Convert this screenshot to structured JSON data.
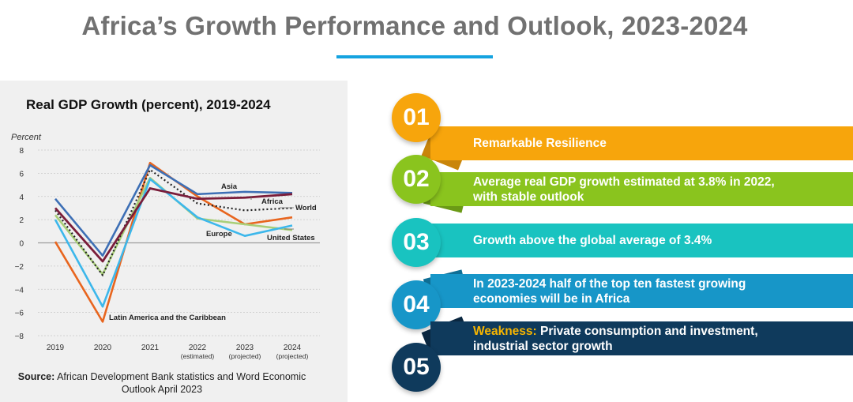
{
  "title": "Africa’s Growth Performance and Outlook, 2023-2024",
  "source": {
    "label": "Source:",
    "line1": " African Development Bank statistics and Word Economic",
    "line2": "Outlook April 2023"
  },
  "colors": {
    "accent": "#15a3e0",
    "asia": "#3d6fb5",
    "africa": "#7a1d3a",
    "world": "#222222",
    "europe": "#a9cf79",
    "united_states": "#3cb7eb",
    "latam": "#e8651e"
  },
  "chart_data": {
    "type": "line",
    "title": "Real GDP Growth (percent), 2019-2024",
    "ylabel": "Percent",
    "xlabel": "",
    "ylim": [
      -8,
      8
    ],
    "yticks": [
      "8",
      "6",
      "4",
      "2",
      "0",
      "−2",
      "−4",
      "−6",
      "−8"
    ],
    "x": [
      {
        "main": "2019",
        "sub": ""
      },
      {
        "main": "2020",
        "sub": ""
      },
      {
        "main": "2021",
        "sub": ""
      },
      {
        "main": "2022",
        "sub": "(estimated)"
      },
      {
        "main": "2023",
        "sub": "(projected)"
      },
      {
        "main": "2024",
        "sub": "(projected)"
      }
    ],
    "series": [
      {
        "name": "Latin America and the Caribbean",
        "values": [
          0.1,
          -6.8,
          6.9,
          4.0,
          1.6,
          2.2
        ]
      },
      {
        "name": "Europe",
        "values": [
          2.4,
          -2.7,
          5.6,
          2.1,
          1.6,
          1.1
        ]
      },
      {
        "name": "United States",
        "values": [
          2.0,
          -5.5,
          5.5,
          2.2,
          0.6,
          1.5
        ]
      },
      {
        "name": "World",
        "values": [
          2.8,
          -2.8,
          6.3,
          3.4,
          2.8,
          3.0
        ]
      },
      {
        "name": "Asia",
        "values": [
          3.8,
          -1.1,
          6.7,
          4.2,
          4.4,
          4.3
        ]
      },
      {
        "name": "Africa",
        "values": [
          3.0,
          -1.6,
          4.7,
          3.8,
          3.9,
          4.2
        ]
      }
    ],
    "series_labels": {
      "asia": "Asia",
      "africa": "Africa",
      "world": "World",
      "europe": "Europe",
      "united_states": "United States",
      "latam": "Latin America and the Caribbean"
    }
  },
  "items": [
    {
      "number": "01",
      "text": "Remarkable Resilience",
      "text2": "",
      "color": "#f7a50c",
      "dark": "#c9850a"
    },
    {
      "number": "02",
      "text": "Average real GDP growth estimated at 3.8% in 2022,",
      "text2": "with stable outlook",
      "color": "#8ac41e",
      "dark": "#6b9a16"
    },
    {
      "number": "03",
      "text": "Growth above the global average of 3.4%",
      "text2": "",
      "color": "#19c3c0",
      "dark": "#119896"
    },
    {
      "number": "04",
      "text": "In 2023-2024 half of the top ten fastest growing",
      "text2": "economies will be in Africa",
      "color": "#1796c8",
      "dark": "#0f6f96"
    },
    {
      "number": "05",
      "highlight": "Weakness:",
      "text": " Private consumption and investment,",
      "text2": "industrial sector growth",
      "color": "#0f3a5c",
      "dark": "#0a2740"
    }
  ]
}
